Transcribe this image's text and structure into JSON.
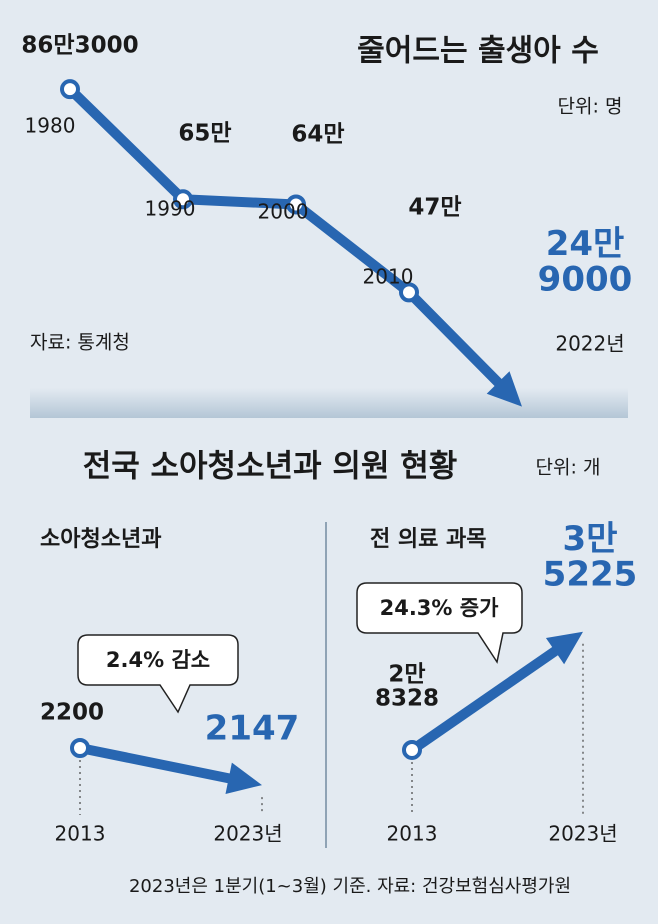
{
  "chart_data": [
    {
      "type": "line",
      "title": "줄어드는 출생아 수",
      "unit": "단위: 명",
      "source": "자료: 통계청",
      "categories": [
        "1980",
        "1990",
        "2000",
        "2010",
        "2022년"
      ],
      "values": [
        863000,
        650000,
        640000,
        470000,
        249000
      ],
      "value_labels": [
        "86만3000",
        "65만",
        "64만",
        "47만",
        "24만\n9000"
      ],
      "ylim": [
        200000,
        900000
      ],
      "color": "#2866b1"
    },
    {
      "type": "line",
      "title": "소아청소년과",
      "annotation": "2.4% 감소",
      "categories": [
        "2013",
        "2023년"
      ],
      "values": [
        2200,
        2147
      ],
      "ylim": [
        2100,
        2300
      ],
      "color": "#2866b1"
    },
    {
      "type": "line",
      "title": "전 의료 과목",
      "annotation": "24.3% 증가",
      "categories": [
        "2013",
        "2023년"
      ],
      "values": [
        28328,
        35225
      ],
      "value_labels": [
        "2만\n8328",
        "3만\n5225"
      ],
      "ylim": [
        25000,
        40000
      ],
      "color": "#2866b1"
    }
  ],
  "section": {
    "title": "전국 소아청소년과 의원 현황",
    "unit": "단위: 개"
  },
  "footnote": "2023년은 1분기(1~3월) 기준. 자료: 건강보험심사평가원"
}
